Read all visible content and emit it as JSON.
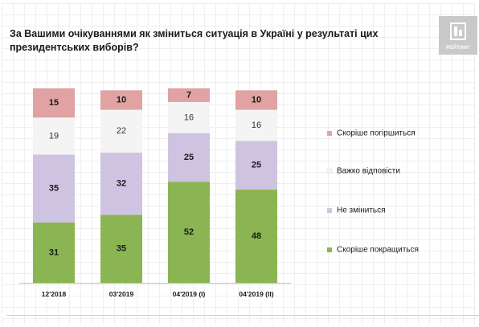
{
  "title": "За Вашими очікуваннями як зміниться ситуація в Україні у результаті цих президентських виборів?",
  "logo": {
    "text": "РЕЙТИНГ",
    "icon": "rating-logo-icon",
    "color": "#c9c9c9"
  },
  "chart_data": {
    "type": "bar",
    "stacked": true,
    "title": "За Вашими очікуваннями як зміниться ситуація в Україні у результаті цих президентських виборів?",
    "categories": [
      "12'2018",
      "03'2019",
      "04'2019 (I)",
      "04'2019 (II)"
    ],
    "series": [
      {
        "name": "Скоріше покращиться",
        "color": "#8bb552",
        "values": [
          31,
          35,
          52,
          48
        ]
      },
      {
        "name": "Не зміниться",
        "color": "#cfc3e2",
        "values": [
          35,
          32,
          25,
          25
        ]
      },
      {
        "name": "Важко відповісти",
        "color": "#f4f4f4",
        "values": [
          19,
          22,
          16,
          16
        ]
      },
      {
        "name": "Скоріше погіршиться",
        "color": "#e0a2a2",
        "values": [
          15,
          10,
          7,
          10
        ]
      }
    ],
    "legend_order": [
      "Скоріше погіршиться",
      "Важко відповісти",
      "Не зміниться",
      "Скоріше покращиться"
    ],
    "legend_position": "right",
    "ylim": [
      0,
      100
    ],
    "grid": false,
    "xlabel": "",
    "ylabel": ""
  }
}
